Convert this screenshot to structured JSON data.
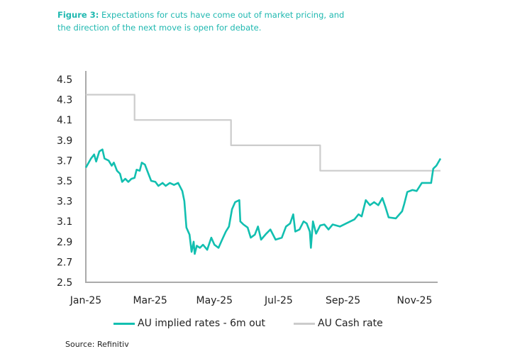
{
  "figure": {
    "label": "Figure 3:",
    "caption": "Expectations for cuts have come out of market pricing, and the direction of the next move is open for debate."
  },
  "source": "Source: Refinitiv",
  "colors": {
    "implied": "#12bfb0",
    "cash": "#cccccc",
    "axis": "#aaaaaa"
  },
  "chart_data": {
    "type": "line",
    "title": "",
    "xlabel": "",
    "ylabel": "",
    "ylim": [
      2.5,
      4.5
    ],
    "xlim_days": [
      0,
      342
    ],
    "yticks": [
      "2.5",
      "2.7",
      "2.9",
      "3.1",
      "3.3",
      "3.5",
      "3.7",
      "3.9",
      "4.1",
      "4.3",
      "4.5"
    ],
    "xticks": [
      {
        "label": "Jan-25",
        "day": 0
      },
      {
        "label": "Mar-25",
        "day": 62
      },
      {
        "label": "May-25",
        "day": 124
      },
      {
        "label": "Jul-25",
        "day": 186
      },
      {
        "label": "Sep-25",
        "day": 248
      },
      {
        "label": "Nov-25",
        "day": 317
      }
    ],
    "legend_position": "bottom",
    "series": [
      {
        "name": "AU implied rates - 6m out",
        "color": "#12bfb0",
        "points": [
          [
            0,
            3.63
          ],
          [
            5,
            3.72
          ],
          [
            8,
            3.76
          ],
          [
            10,
            3.69
          ],
          [
            13,
            3.79
          ],
          [
            16,
            3.81
          ],
          [
            18,
            3.72
          ],
          [
            22,
            3.7
          ],
          [
            25,
            3.65
          ],
          [
            27,
            3.68
          ],
          [
            30,
            3.6
          ],
          [
            33,
            3.57
          ],
          [
            35,
            3.49
          ],
          [
            38,
            3.52
          ],
          [
            41,
            3.49
          ],
          [
            44,
            3.52
          ],
          [
            47,
            3.53
          ],
          [
            49,
            3.61
          ],
          [
            52,
            3.6
          ],
          [
            54,
            3.68
          ],
          [
            57,
            3.66
          ],
          [
            60,
            3.58
          ],
          [
            63,
            3.5
          ],
          [
            67,
            3.49
          ],
          [
            70,
            3.45
          ],
          [
            74,
            3.48
          ],
          [
            77,
            3.45
          ],
          [
            81,
            3.48
          ],
          [
            85,
            3.46
          ],
          [
            89,
            3.48
          ],
          [
            93,
            3.4
          ],
          [
            95,
            3.3
          ],
          [
            97,
            3.04
          ],
          [
            100,
            2.97
          ],
          [
            102,
            2.8
          ],
          [
            104,
            2.9
          ],
          [
            105,
            2.78
          ],
          [
            107,
            2.86
          ],
          [
            110,
            2.84
          ],
          [
            113,
            2.87
          ],
          [
            117,
            2.82
          ],
          [
            121,
            2.94
          ],
          [
            124,
            2.87
          ],
          [
            128,
            2.84
          ],
          [
            131,
            2.91
          ],
          [
            135,
            3.0
          ],
          [
            138,
            3.05
          ],
          [
            141,
            3.22
          ],
          [
            144,
            3.29
          ],
          [
            148,
            3.31
          ],
          [
            149,
            3.1
          ],
          [
            152,
            3.07
          ],
          [
            156,
            3.04
          ],
          [
            159,
            2.94
          ],
          [
            163,
            2.97
          ],
          [
            166,
            3.05
          ],
          [
            169,
            2.92
          ],
          [
            174,
            2.98
          ],
          [
            178,
            3.02
          ],
          [
            183,
            2.92
          ],
          [
            189,
            2.94
          ],
          [
            193,
            3.05
          ],
          [
            197,
            3.08
          ],
          [
            200,
            3.17
          ],
          [
            202,
            3.0
          ],
          [
            206,
            3.02
          ],
          [
            210,
            3.1
          ],
          [
            213,
            3.08
          ],
          [
            216,
            3.0
          ],
          [
            217,
            2.84
          ],
          [
            219,
            3.1
          ],
          [
            222,
            2.98
          ],
          [
            226,
            3.06
          ],
          [
            230,
            3.07
          ],
          [
            234,
            3.02
          ],
          [
            238,
            3.07
          ],
          [
            245,
            3.05
          ],
          [
            251,
            3.08
          ],
          [
            259,
            3.12
          ],
          [
            263,
            3.17
          ],
          [
            266,
            3.15
          ],
          [
            270,
            3.31
          ],
          [
            274,
            3.26
          ],
          [
            278,
            3.29
          ],
          [
            282,
            3.26
          ],
          [
            286,
            3.33
          ],
          [
            289,
            3.24
          ],
          [
            292,
            3.14
          ],
          [
            299,
            3.13
          ],
          [
            305,
            3.2
          ],
          [
            307,
            3.27
          ],
          [
            310,
            3.39
          ],
          [
            315,
            3.41
          ],
          [
            319,
            3.4
          ],
          [
            324,
            3.48
          ],
          [
            328,
            3.48
          ],
          [
            333,
            3.48
          ],
          [
            335,
            3.62
          ],
          [
            338,
            3.65
          ],
          [
            342,
            3.72
          ]
        ]
      },
      {
        "name": "AU Cash rate",
        "color": "#cccccc",
        "points": [
          [
            0,
            4.35
          ],
          [
            47,
            4.35
          ],
          [
            47,
            4.1
          ],
          [
            140,
            4.1
          ],
          [
            140,
            3.85
          ],
          [
            226,
            3.85
          ],
          [
            226,
            3.6
          ],
          [
            342,
            3.6
          ]
        ]
      }
    ]
  }
}
